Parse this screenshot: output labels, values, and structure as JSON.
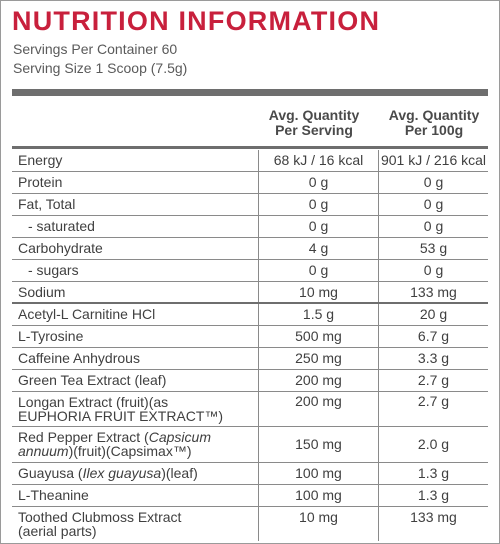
{
  "title": "NUTRITION INFORMATION",
  "servings_per_container": "Servings Per Container 60",
  "serving_size": "Serving Size 1 Scoop (7.5g)",
  "headers": {
    "per_serving_line1": "Avg. Quantity",
    "per_serving_line2": "Per Serving",
    "per_100g_line1": "Avg. Quantity",
    "per_100g_line2": "Per 100g"
  },
  "rows": [
    {
      "name": "Energy",
      "per_serving": "68 kJ / 16 kcal",
      "per_100g": "901 kJ / 216 kcal"
    },
    {
      "name": "Protein",
      "per_serving": "0 g",
      "per_100g": "0 g"
    },
    {
      "name": "Fat, Total",
      "per_serving": "0 g",
      "per_100g": "0 g"
    },
    {
      "name": "- saturated",
      "per_serving": "0 g",
      "per_100g": "0 g"
    },
    {
      "name": "Carbohydrate",
      "per_serving": "4 g",
      "per_100g": "53 g"
    },
    {
      "name": "- sugars",
      "per_serving": "0 g",
      "per_100g": "0 g"
    },
    {
      "name": "Sodium",
      "per_serving": "10 mg",
      "per_100g": "133 mg"
    },
    {
      "name": "Acetyl-L Carnitine HCl",
      "per_serving": "1.5 g",
      "per_100g": "20 g"
    },
    {
      "name": "L-Tyrosine",
      "per_serving": "500 mg",
      "per_100g": "6.7 g"
    },
    {
      "name": "Caffeine Anhydrous",
      "per_serving": "250 mg",
      "per_100g": "3.3 g"
    },
    {
      "name": "Green Tea Extract (leaf)",
      "per_serving": "200 mg",
      "per_100g": "2.7 g"
    },
    {
      "name_line1": "Longan Extract (fruit)(as",
      "name_line2": "EUPHORIA FRUIT EXTRACT™)",
      "per_serving": "200 mg",
      "per_100g": "2.7 g"
    },
    {
      "name_a": "Red Pepper Extract (",
      "name_b": "Capsicum",
      "name_c": "annuum",
      "name_d": ")(fruit)(Capsimax™)",
      "per_serving": "150 mg",
      "per_100g": "2.0 g"
    },
    {
      "name_a": "Guayusa (",
      "name_b": "Ilex guayusa",
      "name_c": ")(leaf)",
      "per_serving": "100 mg",
      "per_100g": "1.3 g"
    },
    {
      "name": "L-Theanine",
      "per_serving": "100 mg",
      "per_100g": "1.3 g"
    },
    {
      "name_line1": "Toothed Clubmoss Extract",
      "name_line2": "(aerial parts)",
      "per_serving": "10 mg",
      "per_100g": "133 mg"
    }
  ]
}
